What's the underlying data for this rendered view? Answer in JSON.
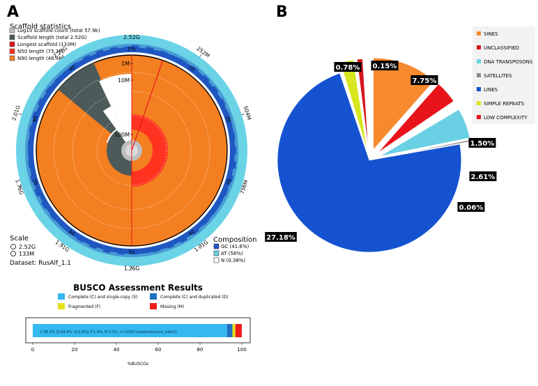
{
  "panel_labels": {
    "a": "A",
    "b": "B"
  },
  "chart_data": [
    {
      "type": "snail",
      "title": "Scaffold statistics",
      "legend": [
        {
          "label": "Log10 scaffold count (total 57.9k)",
          "color": "#bfbfbf"
        },
        {
          "label": "Scaffold length (total 2.52G)",
          "color": "#4d5a5a"
        },
        {
          "label": "Longest scaffold (133M)",
          "color": "#e31a1c"
        },
        {
          "label": "N50 length (75.2M)",
          "color": "#ff3320"
        },
        {
          "label": "N90 length (46.9M)",
          "color": "#f47f20"
        }
      ],
      "outer_ticks_top": "2.52G",
      "outer_ticks": [
        {
          "label": "252M",
          "pos": 0.1
        },
        {
          "label": "504M",
          "pos": 0.2
        },
        {
          "label": "756M",
          "pos": 0.3
        },
        {
          "label": "1.01G",
          "pos": 0.4
        },
        {
          "label": "1.26G",
          "pos": 0.5
        },
        {
          "label": "1.51G",
          "pos": 0.6
        },
        {
          "label": "1.76G",
          "pos": 0.7
        },
        {
          "label": "2.01G",
          "pos": 0.8
        },
        {
          "label": "2.27G",
          "pos": 0.9
        }
      ],
      "percent_ticks": [
        {
          "label": "0%",
          "pos": 0
        },
        {
          "label": "10",
          "pos": 0.1
        },
        {
          "label": "20",
          "pos": 0.2
        },
        {
          "label": "30",
          "pos": 0.3
        },
        {
          "label": "40",
          "pos": 0.4
        },
        {
          "label": "50",
          "pos": 0.5
        },
        {
          "label": "60",
          "pos": 0.6
        },
        {
          "label": "70",
          "pos": 0.7
        },
        {
          "label": "80",
          "pos": 0.8
        },
        {
          "label": "90",
          "pos": 0.9
        }
      ],
      "radial_scale_labels": [
        "1M",
        "10M",
        "100M"
      ],
      "longest_scaffold_fraction": 0.0528,
      "n50_fraction": 0.5,
      "n90_fraction": 0.9,
      "scale": {
        "title": "Scale",
        "items": [
          "2.52G",
          "133M"
        ]
      },
      "composition": {
        "title": "Composition",
        "items": [
          {
            "label": "GC (41.6%)",
            "color": "#1f57c2"
          },
          {
            "label": "AT (58%)",
            "color": "#6ad3e6"
          },
          {
            "label": "N (0.38%)",
            "color": "#ffffff"
          }
        ]
      },
      "dataset": "Dataset: RusAlf_1.1"
    },
    {
      "type": "bar",
      "title": "BUSCO Assessment Results",
      "legend": [
        {
          "label": "Complete (C) and single-copy (S)",
          "color": "#33b8f0"
        },
        {
          "label": "Complete (C) and duplicated (D)",
          "color": "#1f6fc2"
        },
        {
          "label": "Fragmented (F)",
          "color": "#e3e11a"
        },
        {
          "label": "Missing (M)",
          "color": "#ef1c1c"
        }
      ],
      "series": [
        {
          "name": "S",
          "value": 92.9
        },
        {
          "name": "D",
          "value": 2.6
        },
        {
          "name": "F",
          "value": 1.4
        },
        {
          "name": "M",
          "value": 3.1
        }
      ],
      "bar_text": "C:95.5% [S:92.9%, D:2.6%], F:1.4%, M:3.1%, n:13335 (cetartiodactyla_odb10)",
      "xticks": [
        "0",
        "20",
        "40",
        "60",
        "80",
        "100"
      ],
      "xlabel": "%BUSCOs",
      "xlim": [
        0,
        100
      ]
    },
    {
      "type": "pie",
      "legend_order": [
        "SINES",
        "UNCLASSIFIED",
        "DNA TRANSPOSONS",
        "SATELLITES",
        "LINES",
        "SIMPLE REPEATS",
        "LOW COMPLEXITY"
      ],
      "slices": [
        {
          "label": "SINES",
          "value": 7.75,
          "text": "7.75%",
          "color": "#f7892e"
        },
        {
          "label": "LOW COMPLEXITY",
          "value": 1.5,
          "text": "1.50%",
          "color": "#e8131b"
        },
        {
          "label": "DNA TRANSPOSONS",
          "value": 2.61,
          "text": "2.61%",
          "color": "#6ad0e4"
        },
        {
          "label": "SATELLITES",
          "value": 0.06,
          "text": "0.06%",
          "color": "#8a8a8a"
        },
        {
          "label": "LINES",
          "value": 27.18,
          "text": "27.18%",
          "color": "#1452d0"
        },
        {
          "label": "SIMPLE REPEATS",
          "value": 0.78,
          "text": "0.78%",
          "color": "#d7e61e"
        },
        {
          "label": "UNCLASSIFIED",
          "value": 0.15,
          "text": "0.15%",
          "color": "#d7141b"
        }
      ]
    }
  ]
}
